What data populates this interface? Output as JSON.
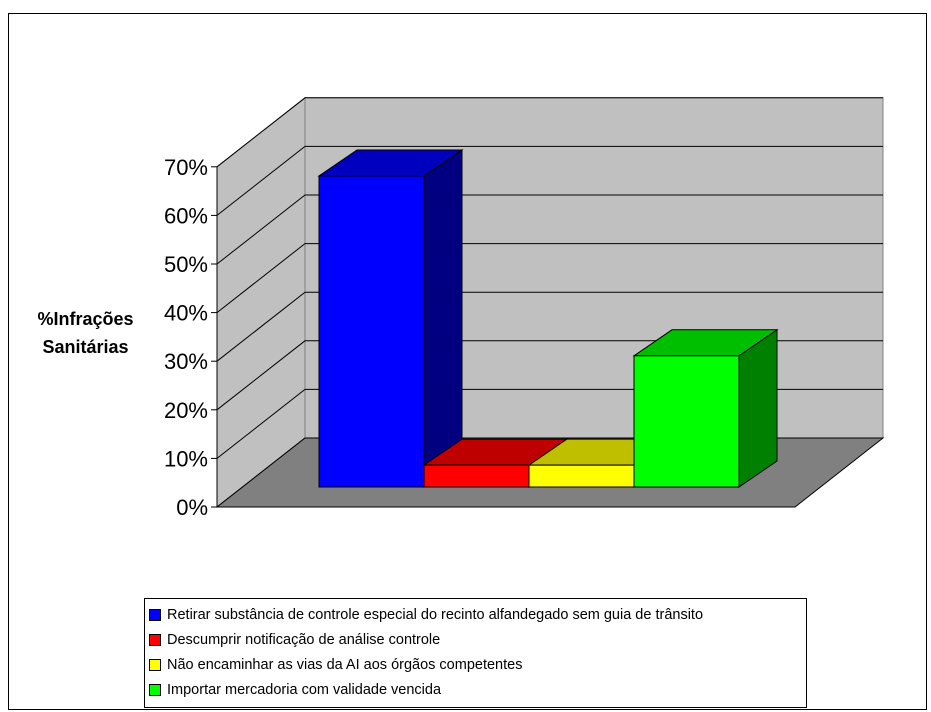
{
  "chart_data": {
    "type": "bar",
    "title": "",
    "xlabel": "",
    "ylabel": [
      "%Infrações",
      "Sanitárias"
    ],
    "ylim": [
      0,
      0.7
    ],
    "y_ticks": [
      "0%",
      "10%",
      "20%",
      "30%",
      "40%",
      "50%",
      "60%",
      "70%"
    ],
    "grid": true,
    "three_d": true,
    "legend_position": "bottom",
    "series": [
      {
        "name": "Retirar substância de controle especial do recinto alfandegado sem guia de trânsito",
        "value": 0.64,
        "color": "#0000ff"
      },
      {
        "name": "Descumprir notificação de análise controle",
        "value": 0.045,
        "color": "#ff0000"
      },
      {
        "name": "Não encaminhar as vias da AI aos órgãos competentes",
        "value": 0.045,
        "color": "#ffff00"
      },
      {
        "name": "Importar mercadoria com validade vencida",
        "value": 0.27,
        "color": "#00ff00"
      }
    ]
  }
}
